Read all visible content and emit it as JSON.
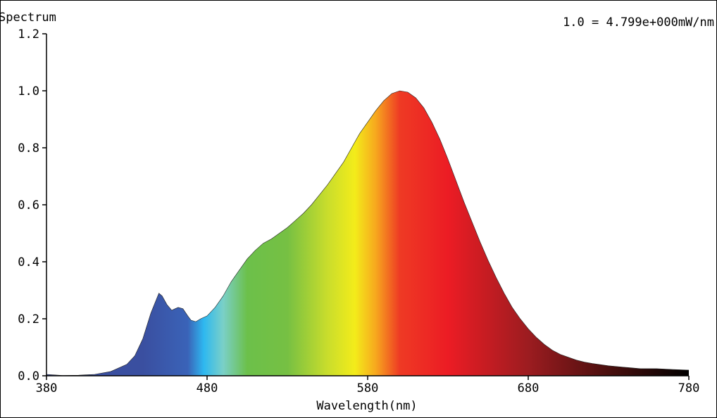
{
  "chart_data": {
    "type": "area",
    "title": "Spectrum",
    "scale_note": "1.0 = 4.799e+000mW/nm",
    "xlabel": "Wavelength(nm)",
    "ylabel": "",
    "xlim": [
      380,
      780
    ],
    "ylim": [
      0,
      1.2
    ],
    "x_ticks": [
      "380",
      "480",
      "580",
      "680",
      "780"
    ],
    "y_ticks": [
      "0.0",
      "0.2",
      "0.4",
      "0.6",
      "0.8",
      "1.0",
      "1.2"
    ],
    "grid": false,
    "series": [
      {
        "x": [
          380,
          390,
          400,
          410,
          420,
          430,
          435,
          440,
          445,
          450,
          452,
          455,
          458,
          460,
          462,
          465,
          468,
          470,
          473,
          476,
          480,
          485,
          490,
          495,
          500,
          505,
          510,
          515,
          520,
          525,
          530,
          535,
          540,
          545,
          550,
          555,
          560,
          565,
          570,
          575,
          580,
          585,
          590,
          595,
          600,
          605,
          610,
          615,
          620,
          625,
          630,
          635,
          640,
          645,
          650,
          655,
          660,
          665,
          670,
          675,
          680,
          685,
          690,
          695,
          700,
          705,
          710,
          715,
          720,
          730,
          740,
          750,
          760,
          770,
          780
        ],
        "y": [
          0.005,
          0.001,
          0.002,
          0.005,
          0.015,
          0.04,
          0.07,
          0.13,
          0.22,
          0.29,
          0.28,
          0.25,
          0.23,
          0.235,
          0.24,
          0.235,
          0.21,
          0.195,
          0.19,
          0.2,
          0.21,
          0.24,
          0.28,
          0.33,
          0.37,
          0.41,
          0.44,
          0.465,
          0.48,
          0.5,
          0.52,
          0.545,
          0.57,
          0.6,
          0.635,
          0.67,
          0.71,
          0.75,
          0.8,
          0.85,
          0.89,
          0.93,
          0.965,
          0.99,
          1.0,
          0.995,
          0.975,
          0.94,
          0.89,
          0.83,
          0.76,
          0.685,
          0.61,
          0.54,
          0.47,
          0.405,
          0.345,
          0.29,
          0.24,
          0.2,
          0.165,
          0.135,
          0.11,
          0.09,
          0.075,
          0.065,
          0.055,
          0.048,
          0.043,
          0.035,
          0.03,
          0.025,
          0.025,
          0.022,
          0.02
        ]
      }
    ]
  },
  "colors": {
    "spectrum_stops": [
      {
        "nm": 440,
        "color": "#3a4fa0"
      },
      {
        "nm": 468,
        "color": "#3a63b8"
      },
      {
        "nm": 478,
        "color": "#2eb8f0"
      },
      {
        "nm": 490,
        "color": "#7ad0c8"
      },
      {
        "nm": 505,
        "color": "#6cc04a"
      },
      {
        "nm": 530,
        "color": "#76c043"
      },
      {
        "nm": 555,
        "color": "#c9dd2c"
      },
      {
        "nm": 572,
        "color": "#f3ec1a"
      },
      {
        "nm": 585,
        "color": "#f7a81e"
      },
      {
        "nm": 600,
        "color": "#ee3a24"
      },
      {
        "nm": 630,
        "color": "#ec1c24"
      },
      {
        "nm": 680,
        "color": "#9c1c20"
      },
      {
        "nm": 730,
        "color": "#4a0f0e"
      },
      {
        "nm": 780,
        "color": "#000000"
      }
    ]
  }
}
